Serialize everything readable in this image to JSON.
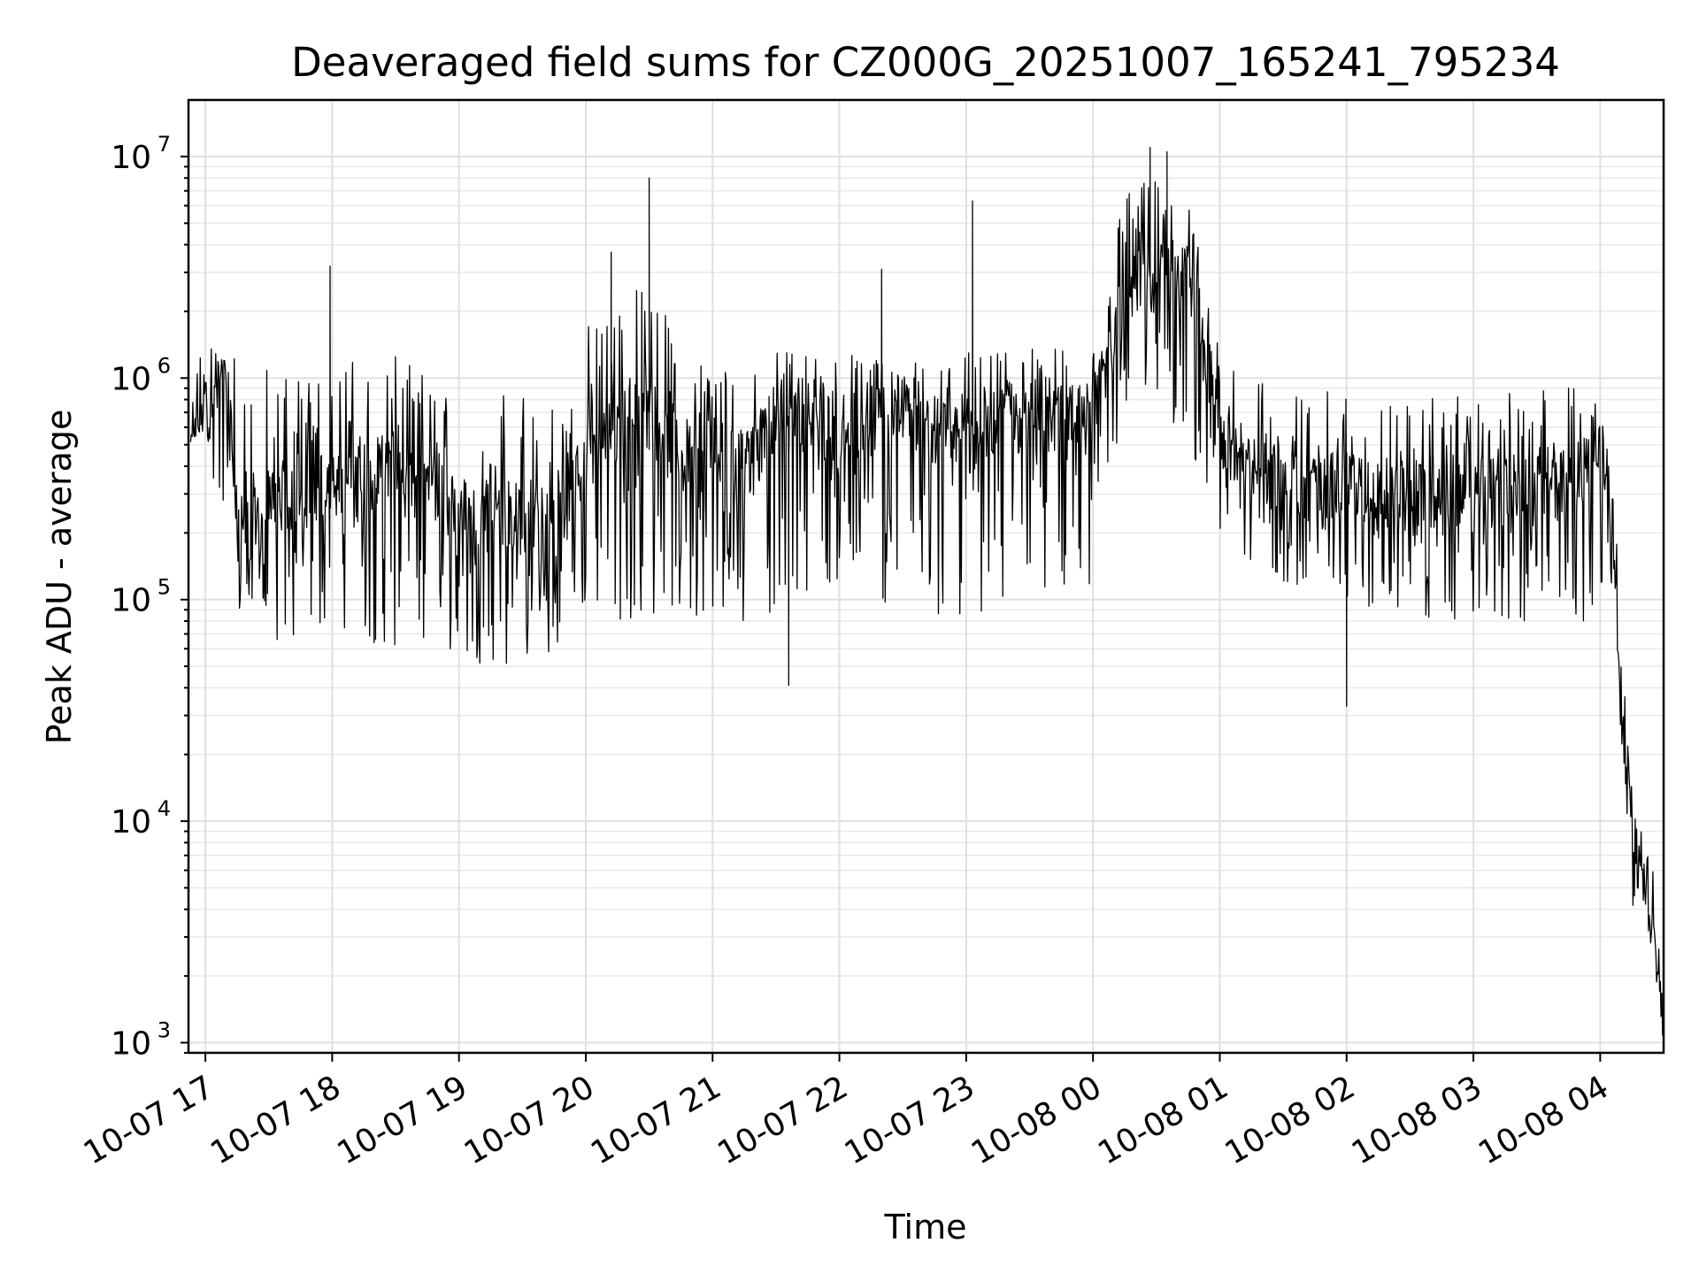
{
  "chart_data": {
    "type": "line",
    "title": "Deaveraged field sums for CZ000G_20251007_165241_795234",
    "xlabel": "Time",
    "ylabel": "Peak ADU - average",
    "yscale": "log",
    "ylim": [
      900,
      18000000
    ],
    "xlim": [
      "2025-10-07 16:52",
      "2025-10-08 04:30"
    ],
    "grid": true,
    "x_ticks": [
      "10-07 17",
      "10-07 18",
      "10-07 19",
      "10-07 20",
      "10-07 21",
      "10-07 22",
      "10-07 23",
      "10-08 00",
      "10-08 01",
      "10-08 02",
      "10-08 03",
      "10-08 04"
    ],
    "y_ticks": [
      {
        "value": 1000,
        "base": "10",
        "exp": "3"
      },
      {
        "value": 10000,
        "base": "10",
        "exp": "4"
      },
      {
        "value": 100000,
        "base": "10",
        "exp": "5"
      },
      {
        "value": 1000000,
        "base": "10",
        "exp": "6"
      },
      {
        "value": 10000000,
        "base": "10",
        "exp": "7"
      }
    ],
    "series": [
      {
        "color": "#000000",
        "x": [
          "2025-10-07 16:53",
          "2025-10-07 17:00",
          "2025-10-07 17:05",
          "2025-10-07 17:10",
          "2025-10-07 17:15",
          "2025-10-07 17:20",
          "2025-10-07 17:30",
          "2025-10-07 17:40",
          "2025-10-07 17:50",
          "2025-10-07 18:00",
          "2025-10-07 18:15",
          "2025-10-07 18:30",
          "2025-10-07 18:45",
          "2025-10-07 19:00",
          "2025-10-07 19:15",
          "2025-10-07 19:30",
          "2025-10-07 19:45",
          "2025-10-07 20:00",
          "2025-10-07 20:15",
          "2025-10-07 20:30",
          "2025-10-07 20:45",
          "2025-10-07 21:00",
          "2025-10-07 21:15",
          "2025-10-07 21:30",
          "2025-10-07 21:45",
          "2025-10-07 22:00",
          "2025-10-07 22:15",
          "2025-10-07 22:30",
          "2025-10-07 22:45",
          "2025-10-07 23:00",
          "2025-10-07 23:15",
          "2025-10-07 23:30",
          "2025-10-07 23:45",
          "2025-10-08 00:00",
          "2025-10-08 00:15",
          "2025-10-08 00:30",
          "2025-10-08 00:45",
          "2025-10-08 01:00",
          "2025-10-08 01:15",
          "2025-10-08 01:30",
          "2025-10-08 01:45",
          "2025-10-08 02:00",
          "2025-10-08 02:15",
          "2025-10-08 02:30",
          "2025-10-08 02:45",
          "2025-10-08 03:00",
          "2025-10-08 03:15",
          "2025-10-08 03:30",
          "2025-10-08 03:45",
          "2025-10-08 04:00",
          "2025-10-08 04:05",
          "2025-10-08 04:10",
          "2025-10-08 04:15",
          "2025-10-08 04:20",
          "2025-10-08 04:25",
          "2025-10-08 04:30"
        ],
        "y": [
          550000,
          700000,
          1200000,
          900000,
          300000,
          200000,
          250000,
          300000,
          320000,
          350000,
          330000,
          420000,
          380000,
          250000,
          240000,
          230000,
          210000,
          420000,
          600000,
          700000,
          420000,
          500000,
          380000,
          650000,
          700000,
          560000,
          650000,
          700000,
          560000,
          600000,
          650000,
          680000,
          620000,
          640000,
          2500000,
          3000000,
          2800000,
          600000,
          420000,
          330000,
          300000,
          320000,
          280000,
          300000,
          310000,
          300000,
          310000,
          330000,
          320000,
          450000,
          350000,
          40000,
          9000,
          6000,
          4000,
          1200
        ],
        "spread_low": [
          500000,
          600000,
          300000,
          80000,
          80000,
          70000,
          60000,
          55000,
          70000,
          75000,
          65000,
          60000,
          60000,
          55000,
          50000,
          50000,
          55000,
          90000,
          80000,
          85000,
          80000,
          90000,
          70000,
          90000,
          110000,
          120000,
          90000,
          100000,
          80000,
          85000,
          90000,
          110000,
          100000,
          120000,
          700000,
          900000,
          400000,
          200000,
          150000,
          120000,
          110000,
          100000,
          90000,
          80000,
          80000,
          70000,
          80000,
          75000,
          80000,
          80000,
          120000,
          20000,
          3500,
          3000,
          2500,
          1000
        ],
        "spread_high": [
          800000,
          1800000,
          1400000,
          1300000,
          1200000,
          1300000,
          1200000,
          1300000,
          1250000,
          1300000,
          1200000,
          1250000,
          1100000,
          900000,
          900000,
          850000,
          900000,
          1800000,
          2500000,
          2800000,
          1400000,
          1200000,
          1100000,
          1300000,
          1400000,
          1300000,
          1350000,
          1200000,
          1200000,
          1300000,
          1350000,
          1400000,
          1350000,
          1400000,
          7500000,
          8000000,
          6500000,
          1500000,
          1100000,
          900000,
          850000,
          900000,
          850000,
          800000,
          850000,
          800000,
          850000,
          900000,
          950000,
          1000000,
          800000,
          60000,
          15000,
          9000,
          6000,
          1500
        ],
        "spikes": [
          {
            "x": "2025-10-07 17:59",
            "y": 3200000
          },
          {
            "x": "2025-10-07 20:12",
            "y": 3700000
          },
          {
            "x": "2025-10-07 20:30",
            "y": 8000000
          },
          {
            "x": "2025-10-07 21:36",
            "y": 41000
          },
          {
            "x": "2025-10-07 22:20",
            "y": 3100000
          },
          {
            "x": "2025-10-07 23:03",
            "y": 6300000
          },
          {
            "x": "2025-10-08 00:27",
            "y": 11000000
          },
          {
            "x": "2025-10-08 00:35",
            "y": 10500000
          },
          {
            "x": "2025-10-08 02:00",
            "y": 33000
          }
        ]
      }
    ]
  }
}
